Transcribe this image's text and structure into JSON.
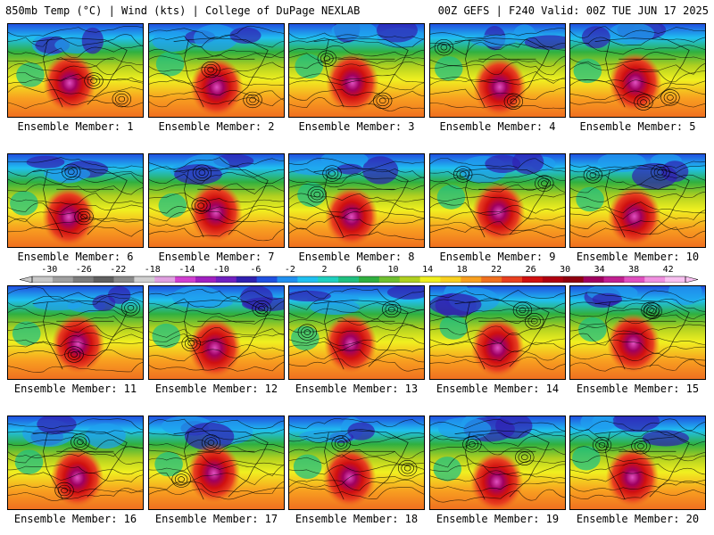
{
  "header": {
    "left": "850mb Temp (°C) | Wind (kts) | College of DuPage NEXLAB",
    "right": "00Z GEFS | F240 Valid: 00Z TUE JUN 17 2025"
  },
  "colorbar": {
    "ticks": [
      "-30",
      "-26",
      "-22",
      "-18",
      "-14",
      "-10",
      "-6",
      "-2",
      "2",
      "6",
      "10",
      "14",
      "18",
      "22",
      "26",
      "30",
      "34",
      "38",
      "42"
    ],
    "colors": [
      "#c8c8c8",
      "#a0a0a0",
      "#7d7d7d",
      "#606060",
      "#8a8a8a",
      "#d0d0d0",
      "#e0a0e0",
      "#d040d0",
      "#a020c0",
      "#7020c0",
      "#3020b0",
      "#2050e0",
      "#2090f0",
      "#20c0f0",
      "#20d0c0",
      "#20c080",
      "#30b040",
      "#70c030",
      "#b0d020",
      "#f0f020",
      "#f8d020",
      "#f8a020",
      "#f07020",
      "#e84020",
      "#d01010",
      "#b00010",
      "#900010",
      "#a00060",
      "#c02090",
      "#e050c0",
      "#f090e0",
      "#f8c0f0"
    ]
  },
  "panels": [
    {
      "caption": "Ensemble Member: 1"
    },
    {
      "caption": "Ensemble Member: 2"
    },
    {
      "caption": "Ensemble Member: 3"
    },
    {
      "caption": "Ensemble Member: 4"
    },
    {
      "caption": "Ensemble Member: 5"
    },
    {
      "caption": "Ensemble Member: 6"
    },
    {
      "caption": "Ensemble Member: 7"
    },
    {
      "caption": "Ensemble Member: 8"
    },
    {
      "caption": "Ensemble Member: 9"
    },
    {
      "caption": "Ensemble Member: 10"
    },
    {
      "caption": "Ensemble Member: 11"
    },
    {
      "caption": "Ensemble Member: 12"
    },
    {
      "caption": "Ensemble Member: 13"
    },
    {
      "caption": "Ensemble Member: 14"
    },
    {
      "caption": "Ensemble Member: 15"
    },
    {
      "caption": "Ensemble Member: 16"
    },
    {
      "caption": "Ensemble Member: 17"
    },
    {
      "caption": "Ensemble Member: 18"
    },
    {
      "caption": "Ensemble Member: 19"
    },
    {
      "caption": "Ensemble Member: 20"
    }
  ]
}
